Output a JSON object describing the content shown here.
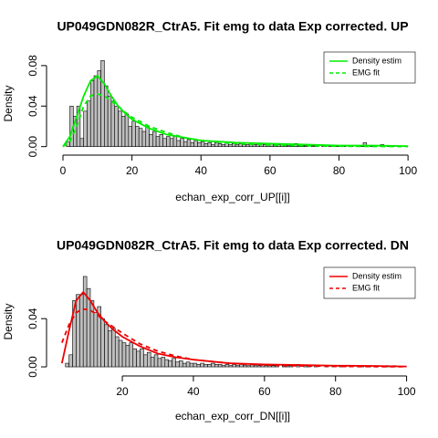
{
  "chart_data": [
    {
      "type": "histogram",
      "title": "UP049GDN082R_CtrA5. Fit emg to data Exp corrected. UP",
      "xlabel": "echan_exp_corr_UP[[i]]",
      "ylabel": "Density",
      "color": "#bebebe",
      "legend": "top-right",
      "bins": [
        1,
        2,
        3,
        4,
        5,
        6,
        7,
        8,
        9,
        10,
        11,
        12,
        13,
        14,
        15,
        16,
        17,
        18,
        19,
        20,
        21,
        22,
        23,
        24,
        25,
        26,
        27,
        28,
        29,
        30,
        31,
        32,
        33,
        34,
        35,
        36,
        37,
        38,
        39,
        40,
        41,
        42,
        43,
        44,
        45,
        46,
        47,
        48,
        49,
        50,
        51,
        52,
        53,
        54,
        55,
        56,
        57,
        58,
        59,
        60,
        61,
        62,
        63,
        64,
        65,
        66,
        67,
        68,
        69,
        70,
        71,
        72,
        73,
        74,
        75,
        76,
        77,
        78,
        79,
        80,
        81,
        82,
        83,
        84,
        85,
        86,
        87,
        88,
        89,
        90,
        91,
        92,
        93,
        94,
        95,
        96
      ],
      "counts": [
        0.005,
        0.04,
        0.03,
        0.04,
        0.008,
        0.035,
        0.045,
        0.065,
        0.07,
        0.075,
        0.085,
        0.06,
        0.05,
        0.045,
        0.04,
        0.035,
        0.03,
        0.032,
        0.02,
        0.025,
        0.02,
        0.018,
        0.015,
        0.02,
        0.012,
        0.015,
        0.01,
        0.012,
        0.008,
        0.01,
        0.008,
        0.01,
        0.006,
        0.008,
        0.005,
        0.007,
        0.004,
        0.006,
        0.004,
        0.005,
        0.003,
        0.004,
        0.002,
        0.004,
        0.003,
        0.002,
        0.004,
        0.002,
        0.003,
        0.002,
        0.003,
        0.002,
        0.002,
        0.003,
        0.002,
        0.002,
        0.003,
        0.002,
        0.002,
        0.003,
        0.002,
        0.002,
        0.003,
        0.002,
        0.001,
        0.002,
        0.003,
        0.001,
        0.001,
        0.001,
        0,
        0.001,
        0.001,
        0,
        0.001,
        0,
        0.001,
        0,
        0.001,
        0,
        0.001,
        0,
        0.001,
        0,
        0,
        0.001,
        0.004,
        0,
        0.001,
        0,
        0,
        0.002,
        0,
        0.001,
        0.001
      ],
      "series": [
        {
          "name": "Density estim",
          "color": "#00ee00",
          "dash": false,
          "x": [
            0,
            2,
            4,
            6,
            8,
            10,
            12,
            14,
            16,
            18,
            20,
            25,
            30,
            35,
            40,
            50,
            60,
            70,
            80,
            90,
            100
          ],
          "values": [
            0,
            0.01,
            0.03,
            0.05,
            0.065,
            0.07,
            0.062,
            0.05,
            0.04,
            0.033,
            0.027,
            0.018,
            0.012,
            0.009,
            0.006,
            0.004,
            0.003,
            0.002,
            0.001,
            0.001,
            0.0005
          ]
        },
        {
          "name": "EMG fit",
          "color": "#00ee00",
          "dash": true,
          "x": [
            0,
            2,
            4,
            6,
            8,
            10,
            12,
            14,
            16,
            18,
            20,
            25,
            30,
            35,
            40,
            50,
            60,
            70,
            80,
            90,
            100
          ],
          "values": [
            0,
            0.005,
            0.02,
            0.04,
            0.05,
            0.052,
            0.05,
            0.045,
            0.04,
            0.034,
            0.029,
            0.02,
            0.014,
            0.009,
            0.006,
            0.003,
            0.0015,
            0.0008,
            0.0004,
            0.0002,
            0.0001
          ]
        }
      ],
      "xlim": [
        -3.7,
        103.4
      ],
      "xticks": [
        0,
        20,
        40,
        60,
        80,
        100
      ],
      "ylim": [
        -0.003,
        0.088
      ],
      "yticks": [
        {
          "value": 0,
          "label": "0.00"
        },
        {
          "value": 0.04,
          "label": "0.04"
        },
        {
          "value": 0.08,
          "label": "0.08"
        }
      ]
    },
    {
      "type": "histogram",
      "title": "UP049GDN082R_CtrA5. Fit emg to data Exp corrected. DN",
      "xlabel": "echan_exp_corr_DN[[i]]",
      "ylabel": "Density",
      "color": "#bebebe",
      "legend": "top-right",
      "bins": [
        4,
        5,
        6,
        7,
        8,
        9,
        10,
        11,
        12,
        13,
        14,
        15,
        16,
        17,
        18,
        19,
        20,
        21,
        22,
        23,
        24,
        25,
        26,
        27,
        28,
        29,
        30,
        31,
        32,
        33,
        34,
        35,
        36,
        37,
        38,
        39,
        40,
        41,
        42,
        43,
        44,
        45,
        46,
        47,
        48,
        49,
        50,
        51,
        52,
        53,
        54,
        55,
        56,
        57,
        58,
        59,
        60,
        61,
        62,
        63,
        64,
        65,
        66,
        67,
        68,
        69,
        70,
        71,
        72,
        73,
        74,
        75,
        76,
        77,
        78,
        79,
        80,
        81,
        82,
        83,
        84,
        85,
        86,
        87,
        88,
        89,
        90,
        91,
        92,
        93,
        94,
        95,
        96,
        97
      ],
      "counts": [
        0.003,
        0.01,
        0.055,
        0.06,
        0.06,
        0.075,
        0.065,
        0.055,
        0.045,
        0.05,
        0.04,
        0.035,
        0.03,
        0.032,
        0.025,
        0.022,
        0.02,
        0.018,
        0.02,
        0.015,
        0.013,
        0.015,
        0.01,
        0.012,
        0.008,
        0.01,
        0.007,
        0.008,
        0.006,
        0.005,
        0.007,
        0.004,
        0.005,
        0.003,
        0.004,
        0.003,
        0.003,
        0.002,
        0.003,
        0.002,
        0.002,
        0.003,
        0.002,
        0.002,
        0.001,
        0.002,
        0.001,
        0.002,
        0.001,
        0.002,
        0.001,
        0.001,
        0.002,
        0.001,
        0.001,
        0.002,
        0.001,
        0.001,
        0.001,
        0.001,
        0,
        0.001,
        0.001,
        0.001,
        0,
        0.002,
        0,
        0.001,
        0.001,
        0,
        0.001,
        0,
        0,
        0.001,
        0,
        0.001,
        0,
        0.001,
        0.001,
        0,
        0.001,
        0,
        0,
        0.001,
        0,
        0.001,
        0,
        0.001,
        0,
        0,
        0.001,
        0,
        0.001
      ],
      "series": [
        {
          "name": "Density estim",
          "color": "#ee0000",
          "dash": false,
          "x": [
            3,
            5,
            7,
            9,
            11,
            13,
            15,
            17,
            20,
            25,
            30,
            35,
            40,
            50,
            60,
            70,
            80,
            90,
            100
          ],
          "values": [
            0.003,
            0.03,
            0.055,
            0.062,
            0.055,
            0.045,
            0.038,
            0.032,
            0.025,
            0.017,
            0.011,
            0.008,
            0.006,
            0.003,
            0.002,
            0.0015,
            0.001,
            0.0008,
            0.0003
          ]
        },
        {
          "name": "EMG fit",
          "color": "#ee0000",
          "dash": true,
          "x": [
            3,
            5,
            7,
            9,
            11,
            13,
            15,
            17,
            20,
            25,
            30,
            35,
            40,
            50,
            60,
            70,
            80,
            90,
            100
          ],
          "values": [
            0.02,
            0.035,
            0.045,
            0.048,
            0.047,
            0.043,
            0.038,
            0.034,
            0.028,
            0.019,
            0.013,
            0.009,
            0.006,
            0.003,
            0.0015,
            0.0008,
            0.0004,
            0.0002,
            0.0001
          ]
        }
      ],
      "xlim": [
        -0.3,
        103.7
      ],
      "xticks": [
        20,
        40,
        60,
        80,
        100
      ],
      "ylim": [
        -0.003,
        0.078
      ],
      "yticks": [
        {
          "value": 0,
          "label": "0.00"
        },
        {
          "value": 0.04,
          "label": "0.04"
        }
      ]
    }
  ]
}
